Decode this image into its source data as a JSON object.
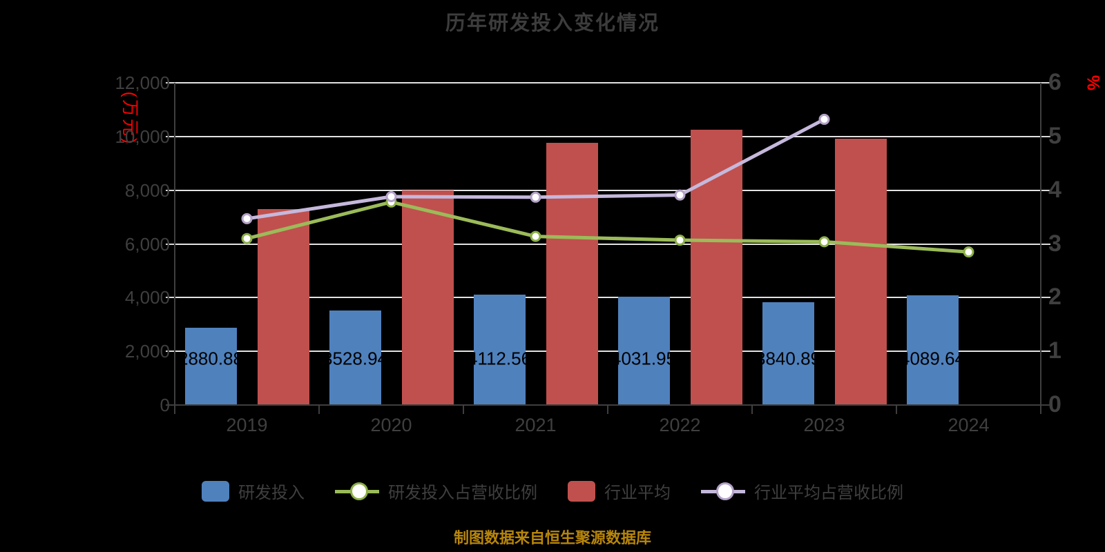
{
  "title": "历年研发投入变化情况",
  "source_note": "制图数据来自恒生聚源数据库",
  "left_axis": {
    "unit": "(万元)",
    "ticks": [
      "12,000",
      "10,000",
      "8,000",
      "6,000",
      "4,000",
      "2,000",
      "0"
    ],
    "min": 0,
    "max": 12000,
    "step": 2000
  },
  "right_axis": {
    "unit": "%",
    "ticks": [
      "6",
      "5",
      "4",
      "3",
      "2",
      "1",
      "0"
    ],
    "min": 0,
    "max": 6,
    "step": 1
  },
  "chart_data": {
    "type": "combo-bar-line",
    "categories": [
      "2019",
      "2020",
      "2021",
      "2022",
      "2023",
      "2024"
    ],
    "series": [
      {
        "key": "rd-investment",
        "name": "研发投入",
        "type": "bar",
        "axis": "left",
        "color": "#4f81bd",
        "values": [
          2880.88,
          3528.94,
          4112.56,
          4031.95,
          3840.89,
          4089.64
        ],
        "bar_labels": [
          "2880.88",
          "3528.94",
          "4112.56",
          "4031.95",
          "3840.89",
          "4089.64"
        ]
      },
      {
        "key": "industry-average",
        "name": "行业平均",
        "type": "bar",
        "axis": "left",
        "color": "#c0504d",
        "values": [
          7300,
          7985,
          9765,
          10255,
          9920,
          null
        ],
        "bar_labels": [
          null,
          null,
          null,
          null,
          null,
          null
        ]
      },
      {
        "key": "rd-ratio",
        "name": "研发投入占营收比例",
        "type": "line",
        "axis": "right",
        "color": "#9bbb59",
        "marker_stroke": "#8caf48",
        "marker_fill": "#ffffff",
        "values": [
          3.1,
          3.78,
          3.14,
          3.07,
          3.04,
          2.85
        ]
      },
      {
        "key": "industry-ratio",
        "name": "行业平均占营收比例",
        "type": "line",
        "axis": "right",
        "color": "#c5b8dc",
        "marker_stroke": "#b3a2c7",
        "marker_fill": "#ffffff",
        "values": [
          3.47,
          3.88,
          3.87,
          3.91,
          5.32,
          null
        ]
      }
    ],
    "left_ylim": [
      0,
      12000
    ],
    "right_ylim": [
      0,
      6
    ],
    "grid": true,
    "legend_position": "bottom"
  },
  "legend": [
    {
      "label": "研发投入",
      "swatch": "box",
      "color": "#4f81bd"
    },
    {
      "label": "研发投入占营收比例",
      "swatch": "line",
      "color": "#9bbb59",
      "ring": "#8caf48"
    },
    {
      "label": "行业平均",
      "swatch": "box",
      "color": "#c0504d"
    },
    {
      "label": "行业平均占营收比例",
      "swatch": "line",
      "color": "#c5b8dc",
      "ring": "#b3a2c7"
    }
  ],
  "colors": {
    "background": "#000000",
    "gridline": "#e3e3e3",
    "axis_line": "#3f3f3f",
    "tick_mark": "#d9d9d9",
    "axis_text": "#3f3f3f",
    "bar_value_text": "#000000",
    "unit_text": "#ff0000",
    "source_note_text": "#b8860b"
  }
}
